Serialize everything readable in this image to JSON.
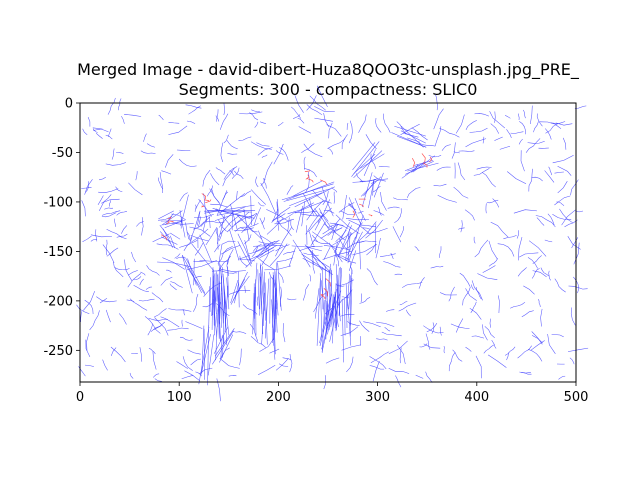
{
  "chart_data": {
    "type": "image",
    "title_lines": [
      "Merged Image - david-dibert-Huza8QOO3tc-unsplash.jpg_PRE_",
      "Segments: 300 - compactness: SLIC0"
    ],
    "xlim": [
      0,
      500
    ],
    "ylim": [
      -282,
      0
    ],
    "x_ticks": [
      0,
      100,
      200,
      300,
      400,
      500
    ],
    "y_ticks": [
      0,
      -50,
      -100,
      -150,
      -200,
      -250
    ],
    "grid": false,
    "colors": {
      "edges": "#3b3bff",
      "highlight_edges": "#ff4040",
      "frame": "#000000"
    },
    "highlight_regions": [
      {
        "x": [
          275,
          295
        ],
        "y": [
          -90,
          -120
        ]
      },
      {
        "x": [
          240,
          255
        ],
        "y": [
          -175,
          -220
        ]
      },
      {
        "x": [
          330,
          355
        ],
        "y": [
          -45,
          -70
        ]
      },
      {
        "x": [
          220,
          245
        ],
        "y": [
          -65,
          -80
        ]
      },
      {
        "x": [
          120,
          150
        ],
        "y": [
          -95,
          -105
        ]
      },
      {
        "x": [
          80,
          90
        ],
        "y": [
          -115,
          -135
        ]
      }
    ]
  }
}
